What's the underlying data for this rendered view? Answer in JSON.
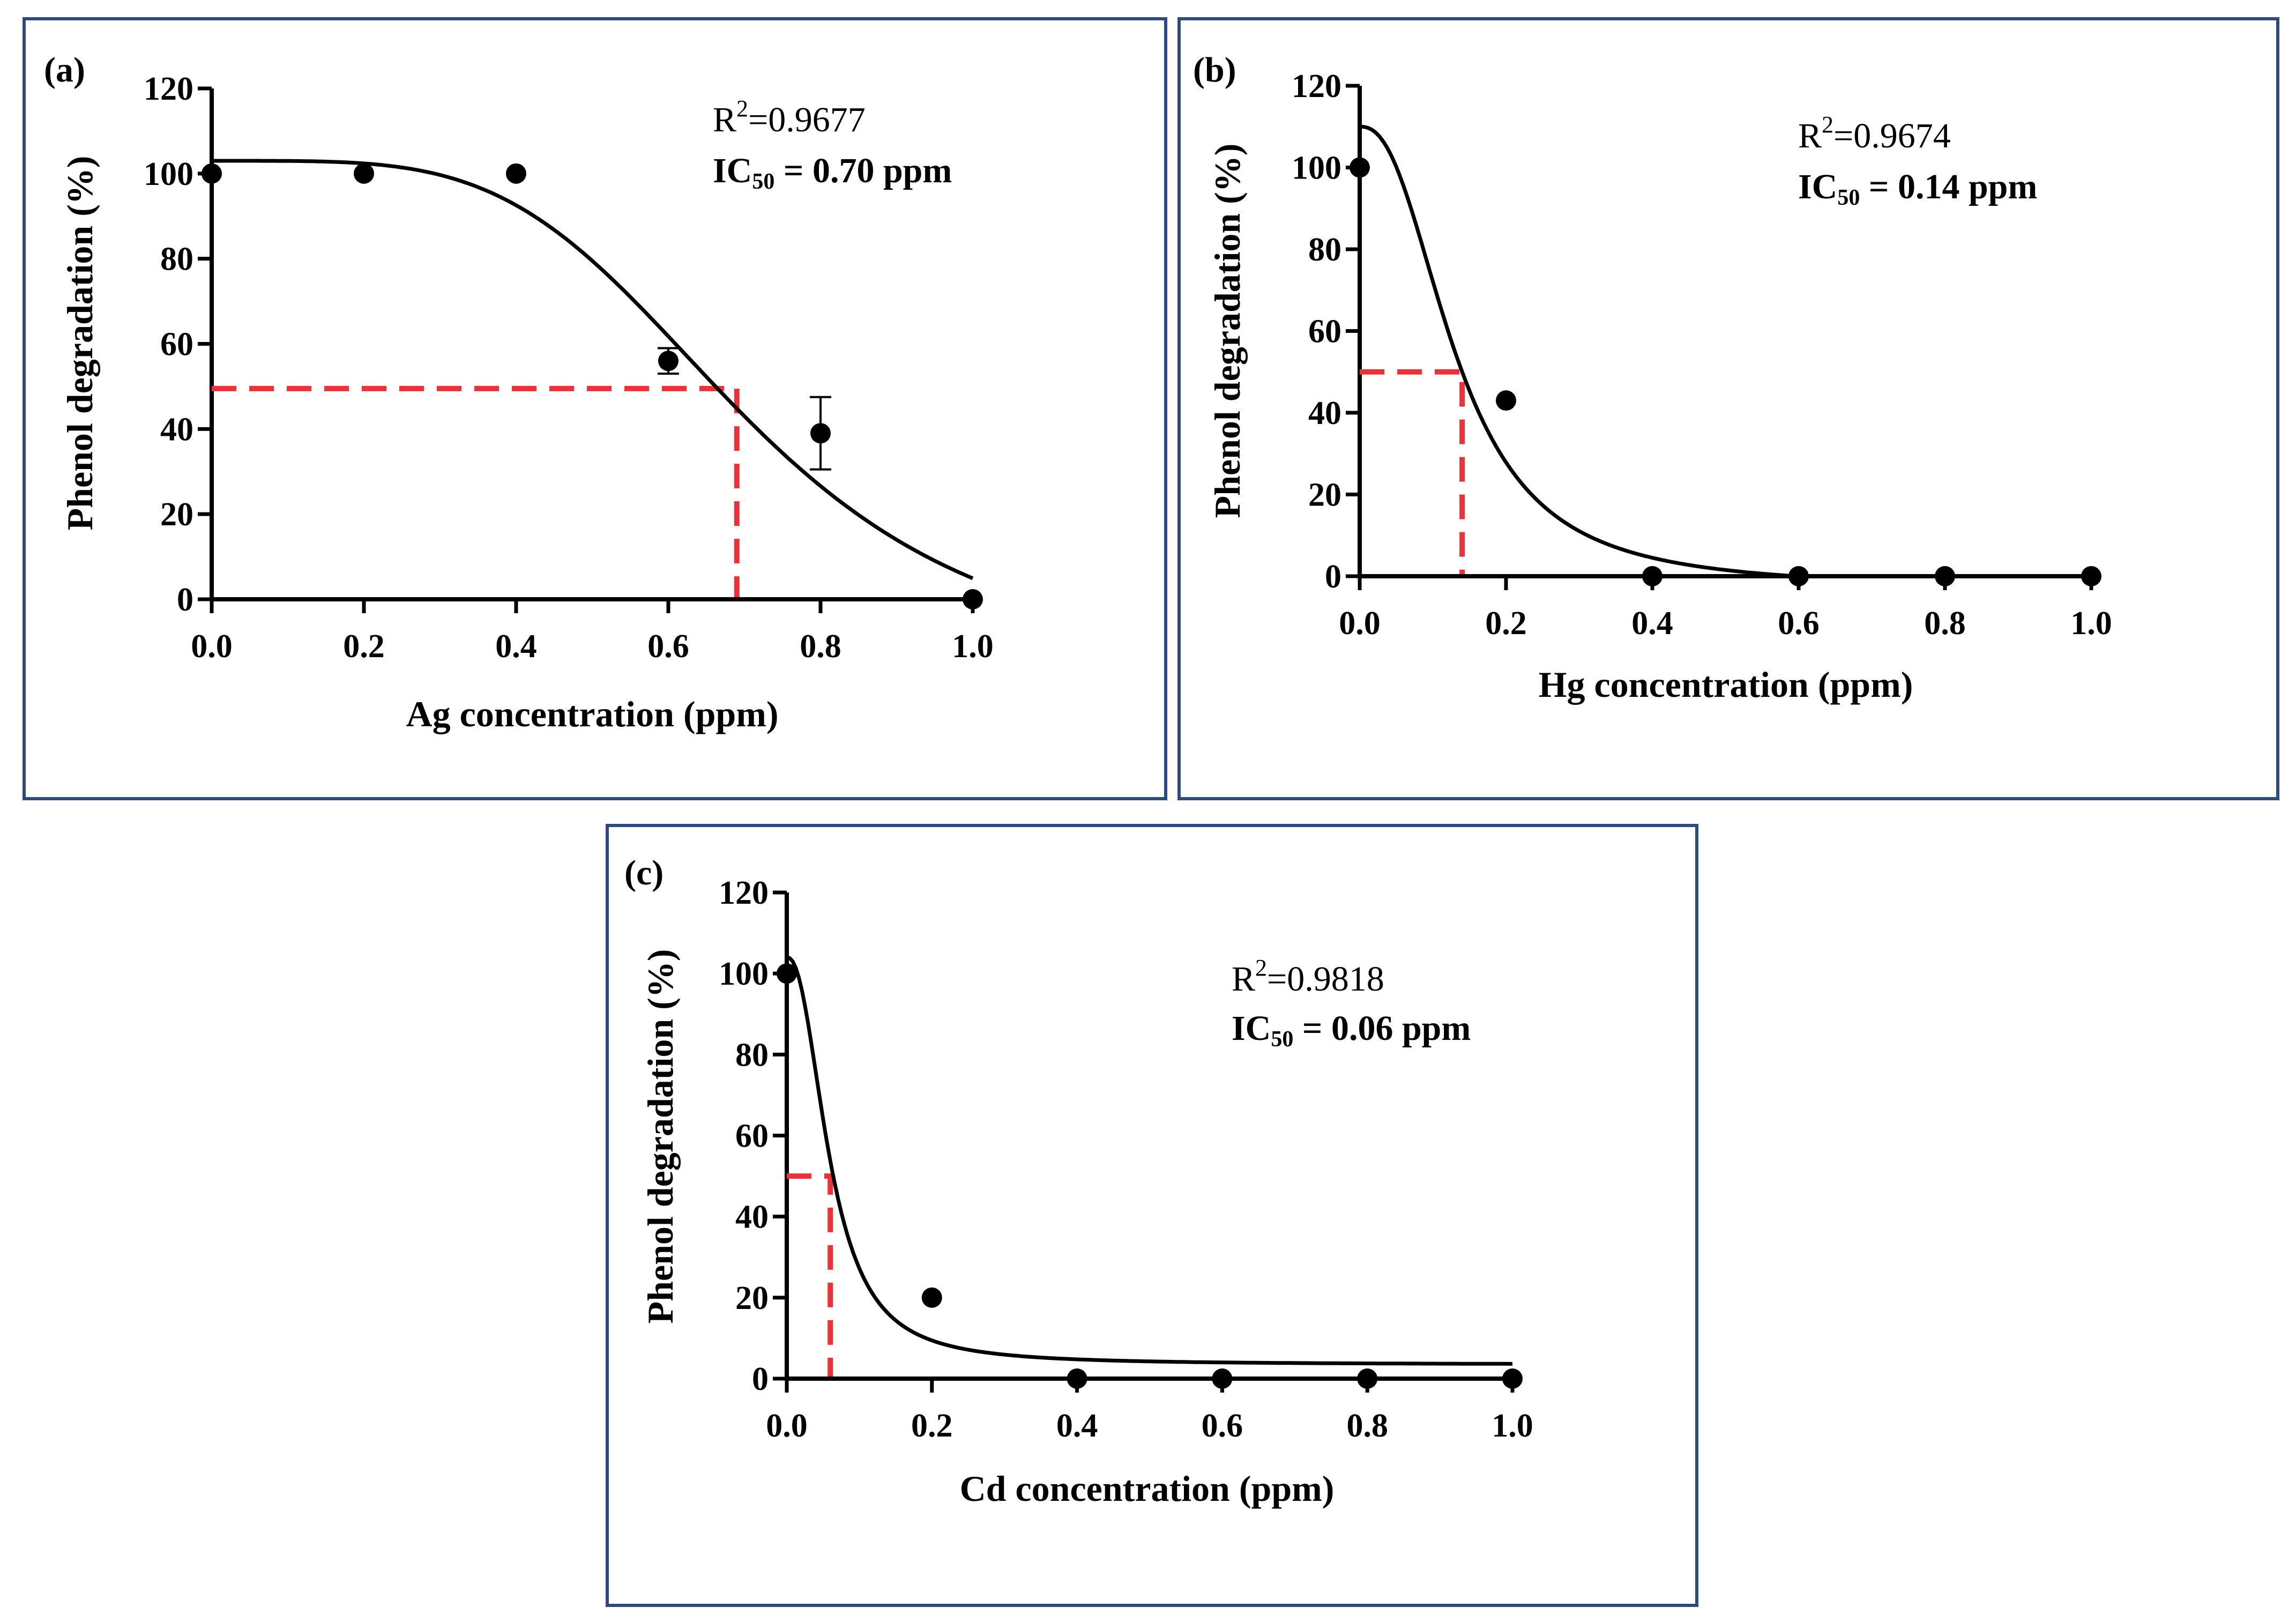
{
  "chart_data": [
    {
      "id": "a",
      "type": "scatter",
      "panel_label": "(a)",
      "xlabel": "Ag concentration (ppm)",
      "ylabel": "Phenol degradation (%)",
      "xlim": [
        0,
        1.0
      ],
      "ylim": [
        0,
        120
      ],
      "x_ticks": [
        "0.0",
        "0.2",
        "0.4",
        "0.6",
        "0.8",
        "1.0"
      ],
      "y_ticks": [
        "0",
        "20",
        "40",
        "60",
        "80",
        "100",
        "120"
      ],
      "points": [
        {
          "x": 0.0,
          "y": 100,
          "err": 0
        },
        {
          "x": 0.2,
          "y": 100,
          "err": 0
        },
        {
          "x": 0.4,
          "y": 100,
          "err": 0
        },
        {
          "x": 0.6,
          "y": 56,
          "err": 3
        },
        {
          "x": 0.8,
          "y": 39,
          "err": 8.5
        },
        {
          "x": 1.0,
          "y": 0,
          "err": 0
        }
      ],
      "fit": {
        "model": "logistic",
        "top": 103,
        "bottom": -17,
        "ic50": 0.7,
        "hill": 4.2
      },
      "r2_prefix": "R",
      "r2_sup": "2",
      "r2_value": "=0.9677",
      "ic50_prefix": "IC",
      "ic50_sub": "50",
      "ic50_value": " = 0.70 ppm",
      "ic50_guide": {
        "x": 0.69,
        "y": 49.5
      },
      "line_colors": {
        "fit": "#000000",
        "ic50_guide": "#e8333a"
      }
    },
    {
      "id": "b",
      "type": "scatter",
      "panel_label": "(b)",
      "xlabel": "Hg concentration (ppm)",
      "ylabel": "Phenol degradation (%)",
      "xlim": [
        0,
        1.0
      ],
      "ylim": [
        0,
        120
      ],
      "x_ticks": [
        "0.0",
        "0.2",
        "0.4",
        "0.6",
        "0.8",
        "1.0"
      ],
      "y_ticks": [
        "0",
        "20",
        "40",
        "60",
        "80",
        "100",
        "120"
      ],
      "points": [
        {
          "x": 0.0,
          "y": 100,
          "err": 0
        },
        {
          "x": 0.2,
          "y": 43,
          "err": 0
        },
        {
          "x": 0.4,
          "y": 0,
          "err": 0
        },
        {
          "x": 0.6,
          "y": 0,
          "err": 0
        },
        {
          "x": 0.8,
          "y": 0,
          "err": 0
        },
        {
          "x": 1.0,
          "y": 0,
          "err": 0
        }
      ],
      "fit": {
        "model": "logistic",
        "top": 110,
        "bottom": -3,
        "ic50": 0.133,
        "hill": 2.4,
        "x_end": 0.8
      },
      "r2_prefix": "R",
      "r2_sup": "2",
      "r2_value": "=0.9674",
      "ic50_prefix": "IC",
      "ic50_sub": "50",
      "ic50_value": " = 0.14 ppm",
      "ic50_guide": {
        "x": 0.14,
        "y": 50
      },
      "line_colors": {
        "fit": "#000000",
        "ic50_guide": "#e8333a"
      }
    },
    {
      "id": "c",
      "type": "scatter",
      "panel_label": "(c)",
      "xlabel": "Cd concentration (ppm)",
      "ylabel": "Phenol degradation (%)",
      "xlim": [
        0,
        1.0
      ],
      "ylim": [
        0,
        120
      ],
      "x_ticks": [
        "0.0",
        "0.2",
        "0.4",
        "0.6",
        "0.8",
        "1.0"
      ],
      "y_ticks": [
        "0",
        "20",
        "40",
        "60",
        "80",
        "100",
        "120"
      ],
      "points": [
        {
          "x": 0.0,
          "y": 100,
          "err": 0
        },
        {
          "x": 0.2,
          "y": 20,
          "err": 0
        },
        {
          "x": 0.4,
          "y": 0,
          "err": 0
        },
        {
          "x": 0.6,
          "y": 0,
          "err": 0
        },
        {
          "x": 0.8,
          "y": 0,
          "err": 0
        },
        {
          "x": 1.0,
          "y": 0,
          "err": 0
        }
      ],
      "fit": {
        "model": "logistic",
        "top": 104,
        "bottom": 3.5,
        "ic50": 0.06,
        "hill": 2.3
      },
      "r2_prefix": "R",
      "r2_sup": "2",
      "r2_value": "=0.9818",
      "ic50_prefix": "IC",
      "ic50_sub": "50",
      "ic50_value": " = 0.06 ppm",
      "ic50_guide": {
        "x": 0.06,
        "y": 50
      },
      "line_colors": {
        "fit": "#000000",
        "ic50_guide": "#e8333a"
      }
    }
  ]
}
